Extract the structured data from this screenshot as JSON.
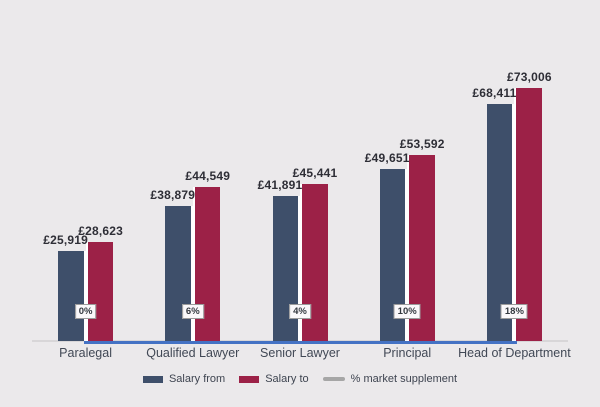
{
  "chart": {
    "background": "#ebe9eb",
    "axis_color": "#d8d6d8",
    "baseline_series_line_color": "#4472c4",
    "value_label_color": "#2e2e36",
    "category_label_color": "#414855",
    "legend": [
      {
        "label": "Salary from",
        "swatch": "rect",
        "color": "#3e4f6a"
      },
      {
        "label": "Salary to",
        "swatch": "rect",
        "color": "#9c2147"
      },
      {
        "label": "% market supplement",
        "swatch": "line",
        "color": "#a6a6a6"
      }
    ]
  },
  "chart_data": {
    "type": "bar",
    "title": "",
    "categories": [
      "Paralegal",
      "Qualified Lawyer",
      "Senior Lawyer",
      "Principal",
      "Head of Department"
    ],
    "series": [
      {
        "name": "Salary from",
        "type": "bar",
        "color": "#3e4f6a",
        "values": [
          25919,
          38879,
          41891,
          49651,
          68411
        ],
        "data_labels": [
          "£25,919",
          "£38,879",
          "£41,891",
          "£49,651",
          "£68,411"
        ]
      },
      {
        "name": "Salary to",
        "type": "bar",
        "color": "#9c2147",
        "values": [
          28623,
          44549,
          45441,
          53592,
          73006
        ],
        "data_labels": [
          "£28,623",
          "£44,549",
          "£45,441",
          "£53,592",
          "£73,006"
        ]
      },
      {
        "name": "% market supplement",
        "type": "line",
        "plot_color": "#4472c4",
        "legend_color": "#a6a6a6",
        "values": [
          0,
          6,
          4,
          10,
          18
        ],
        "data_labels": [
          "0%",
          "6%",
          "4%",
          "10%",
          "18%"
        ]
      }
    ],
    "ylim": [
      0,
      73006
    ],
    "y_axis_visible": false,
    "x_axis_visible": true,
    "gridlines": false,
    "legend_position": "bottom"
  }
}
